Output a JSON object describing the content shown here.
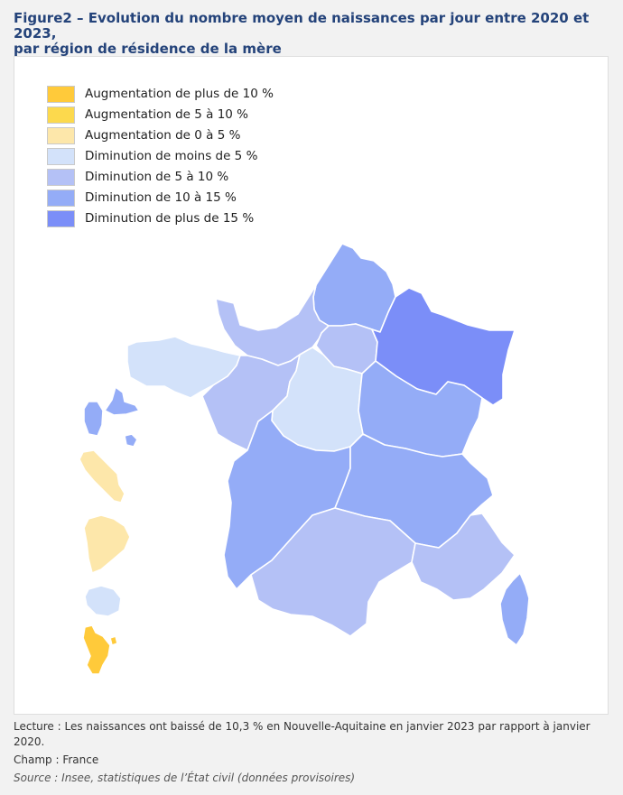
{
  "title": {
    "line1": "Figure2 – Evolution du nombre moyen de naissances par jour entre 2020 et 2023,",
    "line2": "par région de résidence de la mère"
  },
  "legend": [
    {
      "label": "Augmentation de plus de 10 %",
      "color": "#ffca3a"
    },
    {
      "label": "Augmentation de 5 à 10 %",
      "color": "#fcd94d"
    },
    {
      "label": "Augmentation de 0 à 5 %",
      "color": "#fde7aa"
    },
    {
      "label": "Diminution de moins de 5 %",
      "color": "#d3e2fa"
    },
    {
      "label": "Diminution de 5 à 10 %",
      "color": "#b4c1f6"
    },
    {
      "label": "Diminution de 10 à 15 %",
      "color": "#94acf7"
    },
    {
      "label": "Diminution de plus de 15 %",
      "color": "#7b8ef8"
    }
  ],
  "regions": [
    {
      "name": "Hauts-de-France",
      "class": "Diminution de 10 à 15 %"
    },
    {
      "name": "Normandie",
      "class": "Diminution de 5 à 10 %"
    },
    {
      "name": "Île-de-France",
      "class": "Diminution de 5 à 10 %"
    },
    {
      "name": "Grand Est",
      "class": "Diminution de plus de 15 %"
    },
    {
      "name": "Bretagne",
      "class": "Diminution de moins de 5 %"
    },
    {
      "name": "Pays de la Loire",
      "class": "Diminution de 5 à 10 %"
    },
    {
      "name": "Centre-Val de Loire",
      "class": "Diminution de moins de 5 %"
    },
    {
      "name": "Bourgogne-Franche-Comté",
      "class": "Diminution de 10 à 15 %"
    },
    {
      "name": "Nouvelle-Aquitaine",
      "class": "Diminution de 10 à 15 %"
    },
    {
      "name": "Auvergne-Rhône-Alpes",
      "class": "Diminution de 10 à 15 %"
    },
    {
      "name": "Occitanie",
      "class": "Diminution de 5 à 10 %"
    },
    {
      "name": "Provence-Alpes-Côte d'Azur",
      "class": "Diminution de 5 à 10 %"
    },
    {
      "name": "Corse",
      "class": "Diminution de 10 à 15 %"
    },
    {
      "name": "Guadeloupe",
      "class": "Diminution de 10 à 15 %"
    },
    {
      "name": "Martinique",
      "class": "Augmentation de 0 à 5 %"
    },
    {
      "name": "Guyane",
      "class": "Augmentation de 0 à 5 %"
    },
    {
      "name": "La Réunion",
      "class": "Diminution de moins de 5 %"
    },
    {
      "name": "Mayotte",
      "class": "Augmentation de plus de 10 %"
    }
  ],
  "footer": {
    "lecture": "Lecture : Les naissances ont baissé de 10,3 % en Nouvelle-Aquitaine en janvier 2023 par rapport à janvier 2020.",
    "champ": "Champ : France",
    "source": "Source : Insee, statistiques de l’État civil (données provisoires)"
  }
}
